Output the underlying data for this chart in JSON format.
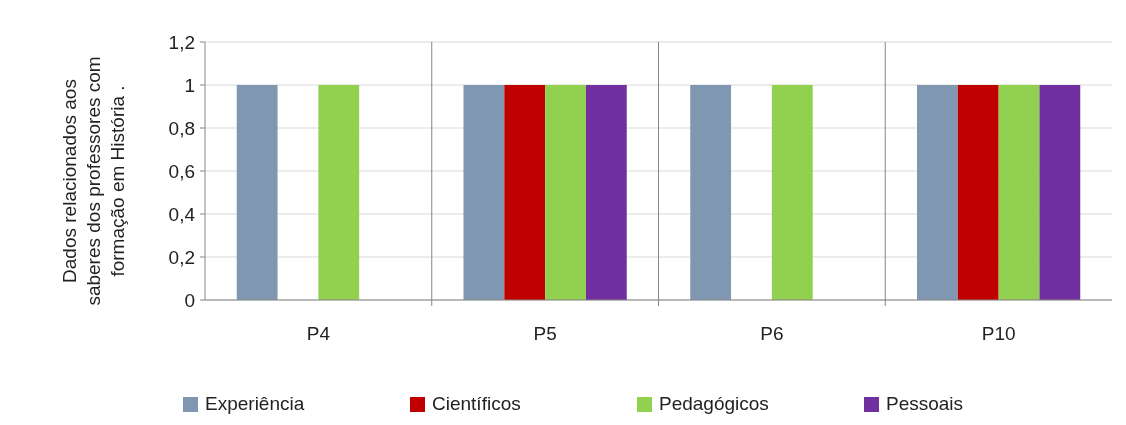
{
  "chart_data": {
    "type": "bar",
    "ylabel": "Dados relacionados aos\nsaberes  dos professores com\nformação em  História .",
    "categories": [
      "P4",
      "P5",
      "P6",
      "P10"
    ],
    "series": [
      {
        "name": "Experiência",
        "color": "#8097b1",
        "values": [
          1,
          1,
          1,
          1
        ]
      },
      {
        "name": "Científicos",
        "color": "#c00000",
        "values": [
          0,
          1,
          0,
          1
        ]
      },
      {
        "name": "Pedagógicos",
        "color": "#92d050",
        "values": [
          1,
          1,
          1,
          1
        ]
      },
      {
        "name": "Pessoais",
        "color": "#7030a0",
        "values": [
          0,
          1,
          0,
          1
        ]
      }
    ],
    "ylim": [
      0,
      1.2
    ],
    "yticks": [
      0,
      {
        "value": 0.2,
        "label": "0,2"
      },
      {
        "value": 0.4,
        "label": "0,4"
      },
      {
        "value": 0.6,
        "label": "0,6"
      },
      {
        "value": 0.8,
        "label": "0,8"
      },
      1,
      {
        "value": 1.2,
        "label": "1,2"
      }
    ],
    "grid": true,
    "legend": "bottom"
  }
}
